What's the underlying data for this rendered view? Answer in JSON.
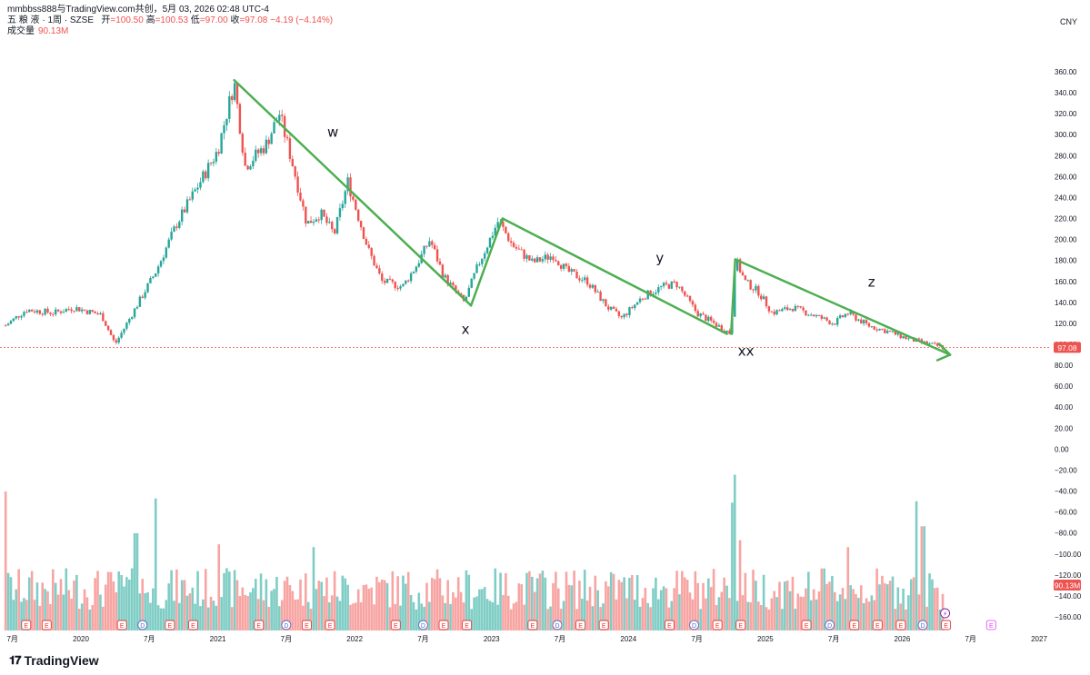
{
  "header": {
    "line1": "mmbbss888与TradingView.com共创，5月 03, 2026 02:48 UTC-4",
    "symbol": "五 粮 液 · 1周 · SZSE",
    "open_label": "开",
    "open": "=100.50",
    "high_label": "高",
    "high": "=100.53",
    "low_label": "低",
    "low": "=97.00",
    "close_label": "收",
    "close": "=97.08",
    "change": "−4.19 (−4.14%)",
    "volume_label": "成交量",
    "volume_value": "90.13M"
  },
  "currency": "CNY",
  "price_badge": "97.08",
  "volume_badge": "90.13M",
  "logo_text": "TradingView",
  "colors": {
    "up": "#26a69a",
    "down": "#ef5350",
    "vol_up": "#7fcdc5",
    "vol_down": "#f7a5a3",
    "wave": "#4caf50",
    "price_line": "#ef5350",
    "badge_event": "#e53935",
    "badge_dividend": "#5c6bc0"
  },
  "chart_data": {
    "type": "candlestick",
    "title": "五 粮 液 · 1周 · SZSE",
    "y_axis": {
      "price_ticks": [
        360,
        340,
        320,
        300,
        280,
        260,
        240,
        220,
        200,
        180,
        160,
        140,
        120,
        100,
        80,
        60,
        40,
        20,
        0,
        -20,
        -40,
        -60,
        -80,
        -100,
        -120,
        -140,
        -160
      ],
      "labels": [
        "360.00",
        "340.00",
        "320.00",
        "300.00",
        "280.00",
        "260.00",
        "240.00",
        "220.00",
        "200.00",
        "180.00",
        "160.00",
        "140.00",
        "120.00",
        "100.00",
        "80.00",
        "60.00",
        "40.00",
        "20.00",
        "0.00",
        "−20.00",
        "−40.00",
        "−60.00",
        "−80.00",
        "−100.00",
        "−120.00",
        "−140.00",
        "−160.00"
      ]
    },
    "x_axis": {
      "ticks": [
        {
          "t": 2019.5,
          "label": "7月"
        },
        {
          "t": 2020.0,
          "label": "2020"
        },
        {
          "t": 2020.5,
          "label": "7月"
        },
        {
          "t": 2021.0,
          "label": "2021"
        },
        {
          "t": 2021.5,
          "label": "7月"
        },
        {
          "t": 2022.0,
          "label": "2022"
        },
        {
          "t": 2022.5,
          "label": "7月"
        },
        {
          "t": 2023.0,
          "label": "2023"
        },
        {
          "t": 2023.5,
          "label": "7月"
        },
        {
          "t": 2024.0,
          "label": "2024"
        },
        {
          "t": 2024.5,
          "label": "7月"
        },
        {
          "t": 2025.0,
          "label": "2025"
        },
        {
          "t": 2025.5,
          "label": "7月"
        },
        {
          "t": 2026.0,
          "label": "2026"
        },
        {
          "t": 2026.5,
          "label": "7月"
        },
        {
          "t": 2027.0,
          "label": "2027"
        }
      ]
    },
    "price_path": [
      [
        2019.45,
        118
      ],
      [
        2019.6,
        133
      ],
      [
        2019.8,
        130
      ],
      [
        2019.95,
        135
      ],
      [
        2020.15,
        128
      ],
      [
        2020.25,
        100
      ],
      [
        2020.4,
        135
      ],
      [
        2020.55,
        170
      ],
      [
        2020.7,
        215
      ],
      [
        2020.85,
        250
      ],
      [
        2021.0,
        285
      ],
      [
        2021.12,
        350
      ],
      [
        2021.2,
        270
      ],
      [
        2021.35,
        290
      ],
      [
        2021.45,
        320
      ],
      [
        2021.55,
        270
      ],
      [
        2021.65,
        215
      ],
      [
        2021.75,
        225
      ],
      [
        2021.85,
        205
      ],
      [
        2021.95,
        255
      ],
      [
        2022.1,
        190
      ],
      [
        2022.2,
        160
      ],
      [
        2022.35,
        155
      ],
      [
        2022.45,
        175
      ],
      [
        2022.55,
        200
      ],
      [
        2022.65,
        165
      ],
      [
        2022.8,
        140
      ],
      [
        2022.9,
        175
      ],
      [
        2023.05,
        218
      ],
      [
        2023.15,
        195
      ],
      [
        2023.3,
        178
      ],
      [
        2023.45,
        185
      ],
      [
        2023.55,
        170
      ],
      [
        2023.7,
        160
      ],
      [
        2023.85,
        135
      ],
      [
        2023.95,
        125
      ],
      [
        2024.1,
        145
      ],
      [
        2024.25,
        155
      ],
      [
        2024.35,
        158
      ],
      [
        2024.5,
        130
      ],
      [
        2024.65,
        118
      ],
      [
        2024.75,
        110
      ],
      [
        2024.78,
        182
      ],
      [
        2024.85,
        160
      ],
      [
        2024.95,
        150
      ],
      [
        2025.05,
        130
      ],
      [
        2025.2,
        135
      ],
      [
        2025.35,
        128
      ],
      [
        2025.5,
        120
      ],
      [
        2025.6,
        130
      ],
      [
        2025.75,
        118
      ],
      [
        2025.9,
        112
      ],
      [
        2026.05,
        105
      ],
      [
        2026.2,
        100
      ],
      [
        2026.3,
        97
      ]
    ],
    "last_close": 97.08,
    "wave_lines": [
      {
        "from": [
          2021.12,
          352
        ],
        "to": [
          2022.85,
          137
        ]
      },
      {
        "from": [
          2022.85,
          137
        ],
        "to": [
          2023.08,
          220
        ]
      },
      {
        "from": [
          2023.08,
          220
        ],
        "to": [
          2024.72,
          110
        ]
      },
      {
        "from": [
          2024.75,
          110
        ],
        "to": [
          2024.78,
          181
        ]
      },
      {
        "from": [
          2024.78,
          181
        ],
        "to": [
          2026.35,
          90
        ]
      }
    ],
    "wave_labels": [
      {
        "text": "w",
        "t": 2021.8,
        "p": 298
      },
      {
        "text": "x",
        "t": 2022.78,
        "p": 110
      },
      {
        "text": "y",
        "t": 2024.2,
        "p": 178
      },
      {
        "text": "xx",
        "t": 2024.8,
        "p": 89
      },
      {
        "text": "z",
        "t": 2025.75,
        "p": 155
      }
    ],
    "event_badges": [
      {
        "t": 2019.6,
        "kind": "E"
      },
      {
        "t": 2019.75,
        "kind": "E"
      },
      {
        "t": 2020.3,
        "kind": "E"
      },
      {
        "t": 2020.45,
        "kind": "D"
      },
      {
        "t": 2020.65,
        "kind": "E"
      },
      {
        "t": 2020.82,
        "kind": "E"
      },
      {
        "t": 2021.3,
        "kind": "E"
      },
      {
        "t": 2021.5,
        "kind": "D"
      },
      {
        "t": 2021.65,
        "kind": "E"
      },
      {
        "t": 2021.82,
        "kind": "E"
      },
      {
        "t": 2022.3,
        "kind": "E"
      },
      {
        "t": 2022.5,
        "kind": "D"
      },
      {
        "t": 2022.65,
        "kind": "E"
      },
      {
        "t": 2022.82,
        "kind": "E"
      },
      {
        "t": 2023.3,
        "kind": "E"
      },
      {
        "t": 2023.48,
        "kind": "D"
      },
      {
        "t": 2023.65,
        "kind": "E"
      },
      {
        "t": 2023.82,
        "kind": "E"
      },
      {
        "t": 2024.3,
        "kind": "E"
      },
      {
        "t": 2024.48,
        "kind": "D"
      },
      {
        "t": 2024.65,
        "kind": "E"
      },
      {
        "t": 2024.82,
        "kind": "E"
      },
      {
        "t": 2025.3,
        "kind": "E"
      },
      {
        "t": 2025.47,
        "kind": "D"
      },
      {
        "t": 2025.65,
        "kind": "E"
      },
      {
        "t": 2025.82,
        "kind": "E"
      },
      {
        "t": 2025.99,
        "kind": "E"
      },
      {
        "t": 2026.15,
        "kind": "D"
      },
      {
        "t": 2026.32,
        "kind": "E"
      },
      {
        "t": 2026.65,
        "kind": "E-future"
      }
    ],
    "volume_profile_note": "spikes",
    "volume_spikes": [
      {
        "t": 2019.45,
        "v": 1.0
      },
      {
        "t": 2020.4,
        "v": 0.7
      },
      {
        "t": 2020.55,
        "v": 0.95
      },
      {
        "t": 2021.0,
        "v": 0.62
      },
      {
        "t": 2021.7,
        "v": 0.6
      },
      {
        "t": 2024.75,
        "v": 0.92
      },
      {
        "t": 2024.78,
        "v": 1.12
      },
      {
        "t": 2024.82,
        "v": 0.65
      },
      {
        "t": 2026.1,
        "v": 0.93
      },
      {
        "t": 2026.15,
        "v": 0.75
      },
      {
        "t": 2025.6,
        "v": 0.6
      }
    ]
  }
}
